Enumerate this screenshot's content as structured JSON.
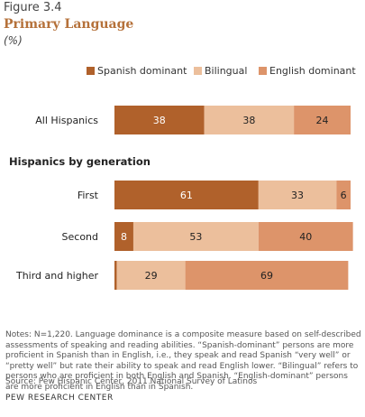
{
  "figure_number": "Figure 3.4",
  "title": "Primary Language",
  "unit": "(%)",
  "section_heading": "Hispanics by generation",
  "notes": "Notes: N=1,220. Language dominance is a composite measure based on self-described assessments of speaking and reading abilities. “Spanish-dominant” persons are more proficient in Spanish than in English, i.e., they speak and read Spanish “very well” or “pretty well” but rate their ability to speak and read English lower. “Bilingual” refers to persons who are proficient in both English and Spanish. “English-dominant” persons are more proficient in English than in Spanish.",
  "source": "Source: Pew Hispanic Center, 2011 National Survey of Latinos",
  "organization": "PEW RESEARCH CENTER",
  "chart_data": {
    "type": "bar",
    "orientation": "horizontal",
    "stacked": true,
    "title": "Primary Language",
    "categories": [
      "All Hispanics",
      "First",
      "Second",
      "Third and higher"
    ],
    "series": [
      {
        "name": "Spanish dominant",
        "color": "#b0612b",
        "values": [
          38,
          61,
          8,
          1
        ],
        "labels": [
          "38",
          "61",
          "8",
          ""
        ]
      },
      {
        "name": "Bilingual",
        "color": "#ecbf9c",
        "values": [
          38,
          33,
          53,
          29
        ],
        "labels": [
          "38",
          "33",
          "53",
          "29"
        ]
      },
      {
        "name": "English dominant",
        "color": "#dd946a",
        "values": [
          24,
          6,
          40,
          69
        ],
        "labels": [
          "24",
          "6",
          "40",
          "69"
        ]
      }
    ],
    "xlim": [
      0,
      100
    ],
    "legend_position": "top"
  }
}
